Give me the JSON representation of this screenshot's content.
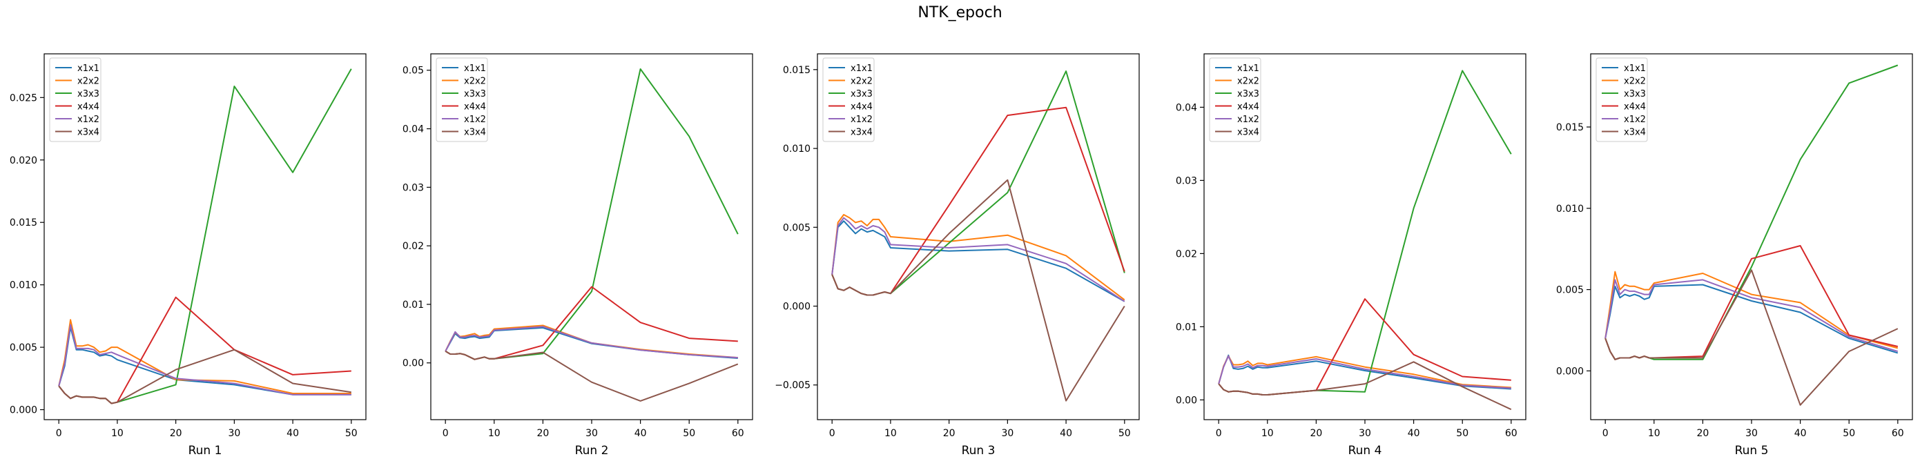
{
  "suptitle": "NTK_epoch",
  "series_names": [
    "x1x1",
    "x2x2",
    "x3x3",
    "x4x4",
    "x1x2",
    "x3x4"
  ],
  "colors": {
    "x1x1": "#1f77b4",
    "x2x2": "#ff7f0e",
    "x3x3": "#2ca02c",
    "x4x4": "#d62728",
    "x1x2": "#9467bd",
    "x3x4": "#8c564b"
  },
  "legend_placement": "upper-left",
  "grid": false,
  "chart_data": [
    {
      "type": "line",
      "xlabel": "Run 1",
      "ylabel": "",
      "xlim": [
        -2.5,
        52.5
      ],
      "ylim": [
        -0.0008,
        0.0285
      ],
      "xticks": [
        0,
        10,
        20,
        30,
        40,
        50
      ],
      "xtick_labels": [
        "0",
        "10",
        "20",
        "30",
        "40",
        "50"
      ],
      "yticks": [
        0,
        0.005,
        0.01,
        0.015,
        0.02,
        0.025
      ],
      "ytick_labels": [
        "0.000",
        "0.005",
        "0.010",
        "0.015",
        "0.020",
        "0.025"
      ],
      "x": [
        0,
        1,
        2,
        3,
        4,
        5,
        6,
        7,
        8,
        9,
        10,
        20,
        30,
        40,
        50
      ],
      "series": [
        {
          "name": "x1x1",
          "values": [
            0.0019,
            0.0035,
            0.0066,
            0.0048,
            0.0048,
            0.0047,
            0.0046,
            0.0043,
            0.0044,
            0.0043,
            0.004,
            0.0024,
            0.002,
            0.0012,
            0.0012
          ]
        },
        {
          "name": "x2x2",
          "values": [
            0.0019,
            0.004,
            0.0072,
            0.0051,
            0.0051,
            0.0052,
            0.005,
            0.0046,
            0.0047,
            0.005,
            0.005,
            0.0024,
            0.0023,
            0.0013,
            0.0013
          ]
        },
        {
          "name": "x3x3",
          "values": [
            0.0019,
            0.0013,
            0.0009,
            0.0011,
            0.001,
            0.001,
            0.001,
            0.0009,
            0.0009,
            0.0005,
            0.0006,
            0.002,
            0.0259,
            0.019,
            0.0273
          ]
        },
        {
          "name": "x4x4",
          "values": [
            0.0019,
            0.0013,
            0.0009,
            0.0011,
            0.001,
            0.001,
            0.001,
            0.0009,
            0.0009,
            0.0005,
            0.0006,
            0.009,
            0.0048,
            0.0028,
            0.0031
          ]
        },
        {
          "name": "x1x2",
          "values": [
            0.0019,
            0.0037,
            0.0068,
            0.0049,
            0.0049,
            0.0049,
            0.0048,
            0.0044,
            0.0045,
            0.0046,
            0.0044,
            0.0025,
            0.0021,
            0.0012,
            0.0012
          ]
        },
        {
          "name": "x3x4",
          "values": [
            0.0019,
            0.0013,
            0.0009,
            0.0011,
            0.001,
            0.001,
            0.001,
            0.0009,
            0.0009,
            0.0005,
            0.0006,
            0.0032,
            0.0048,
            0.0021,
            0.0014
          ]
        }
      ]
    },
    {
      "type": "line",
      "xlabel": "Run 2",
      "ylabel": "",
      "xlim": [
        -3,
        63
      ],
      "ylim": [
        -0.0097,
        0.0528
      ],
      "xticks": [
        0,
        10,
        20,
        30,
        40,
        50,
        60
      ],
      "xtick_labels": [
        "0",
        "10",
        "20",
        "30",
        "40",
        "50",
        "60"
      ],
      "yticks": [
        0,
        0.01,
        0.02,
        0.03,
        0.04,
        0.05
      ],
      "ytick_labels": [
        "0.00",
        "0.01",
        "0.02",
        "0.03",
        "0.04",
        "0.05"
      ],
      "x": [
        0,
        1,
        2,
        3,
        4,
        5,
        6,
        7,
        8,
        9,
        10,
        20,
        30,
        40,
        50,
        60
      ],
      "series": [
        {
          "name": "x1x1",
          "values": [
            0.002,
            0.0035,
            0.005,
            0.0043,
            0.0042,
            0.0044,
            0.0045,
            0.0042,
            0.0043,
            0.0044,
            0.0055,
            0.006,
            0.0033,
            0.0022,
            0.0014,
            0.0008
          ]
        },
        {
          "name": "x2x2",
          "values": [
            0.002,
            0.0037,
            0.0052,
            0.0045,
            0.0046,
            0.0048,
            0.005,
            0.0045,
            0.0047,
            0.0048,
            0.0058,
            0.0064,
            0.0034,
            0.0023,
            0.0015,
            0.0009
          ]
        },
        {
          "name": "x3x3",
          "values": [
            0.002,
            0.0015,
            0.0015,
            0.0016,
            0.0014,
            0.001,
            0.0006,
            0.0008,
            0.001,
            0.0007,
            0.0007,
            0.0016,
            0.0122,
            0.0502,
            0.0387,
            0.022
          ]
        },
        {
          "name": "x4x4",
          "values": [
            0.002,
            0.0015,
            0.0015,
            0.0016,
            0.0014,
            0.001,
            0.0006,
            0.0008,
            0.001,
            0.0007,
            0.0007,
            0.003,
            0.013,
            0.0069,
            0.0042,
            0.0037
          ]
        },
        {
          "name": "x1x2",
          "values": [
            0.002,
            0.0036,
            0.0053,
            0.0044,
            0.0044,
            0.0046,
            0.0047,
            0.0044,
            0.0045,
            0.0046,
            0.0056,
            0.0062,
            0.0034,
            0.0022,
            0.0014,
            0.0009
          ]
        },
        {
          "name": "x3x4",
          "values": [
            0.002,
            0.0015,
            0.0015,
            0.0016,
            0.0014,
            0.001,
            0.0006,
            0.0008,
            0.001,
            0.0007,
            0.0007,
            0.0018,
            -0.0033,
            -0.0065,
            -0.0035,
            -0.0002
          ]
        }
      ]
    },
    {
      "type": "line",
      "xlabel": "Run 3",
      "ylabel": "",
      "xlim": [
        -2.5,
        52.5
      ],
      "ylim": [
        -0.0072,
        0.016
      ],
      "xticks": [
        0,
        10,
        20,
        30,
        40,
        50
      ],
      "xtick_labels": [
        "0",
        "10",
        "20",
        "30",
        "40",
        "50"
      ],
      "yticks": [
        -0.005,
        0,
        0.005,
        0.01,
        0.015
      ],
      "ytick_labels": [
        "−0.005",
        "0.000",
        "0.005",
        "0.010",
        "0.015"
      ],
      "x": [
        0,
        1,
        2,
        3,
        4,
        5,
        6,
        7,
        8,
        9,
        10,
        20,
        30,
        40,
        50
      ],
      "series": [
        {
          "name": "x1x1",
          "values": [
            0.002,
            0.005,
            0.0054,
            0.005,
            0.0046,
            0.0049,
            0.0047,
            0.0048,
            0.0046,
            0.0044,
            0.0037,
            0.0035,
            0.0036,
            0.0024,
            0.0003
          ]
        },
        {
          "name": "x2x2",
          "values": [
            0.002,
            0.0053,
            0.0058,
            0.0056,
            0.0053,
            0.0054,
            0.0051,
            0.0055,
            0.0055,
            0.005,
            0.0044,
            0.0041,
            0.0045,
            0.0032,
            0.0004
          ]
        },
        {
          "name": "x3x3",
          "values": [
            0.002,
            0.0011,
            0.001,
            0.0012,
            0.001,
            0.0008,
            0.0007,
            0.0007,
            0.0008,
            0.0009,
            0.0008,
            0.004,
            0.0072,
            0.0149,
            0.0021
          ]
        },
        {
          "name": "x4x4",
          "values": [
            0.002,
            0.0011,
            0.001,
            0.0012,
            0.001,
            0.0008,
            0.0007,
            0.0007,
            0.0008,
            0.0009,
            0.0008,
            0.0064,
            0.0121,
            0.0126,
            0.0022
          ]
        },
        {
          "name": "x1x2",
          "values": [
            0.002,
            0.0051,
            0.0056,
            0.0053,
            0.0049,
            0.0051,
            0.0049,
            0.0051,
            0.005,
            0.0047,
            0.0039,
            0.0037,
            0.0039,
            0.0027,
            0.0003
          ]
        },
        {
          "name": "x3x4",
          "values": [
            0.002,
            0.0011,
            0.001,
            0.0012,
            0.001,
            0.0008,
            0.0007,
            0.0007,
            0.0008,
            0.0009,
            0.0008,
            0.0046,
            0.008,
            -0.006,
            0.0
          ]
        }
      ]
    },
    {
      "type": "line",
      "xlabel": "Run 4",
      "ylabel": "",
      "xlim": [
        -3,
        63
      ],
      "ylim": [
        -0.0027,
        0.0473
      ],
      "xticks": [
        0,
        10,
        20,
        30,
        40,
        50,
        60
      ],
      "xtick_labels": [
        "0",
        "10",
        "20",
        "30",
        "40",
        "50",
        "60"
      ],
      "yticks": [
        0,
        0.01,
        0.02,
        0.03,
        0.04
      ],
      "ytick_labels": [
        "0.00",
        "0.01",
        "0.02",
        "0.03",
        "0.04"
      ],
      "x": [
        0,
        1,
        2,
        3,
        4,
        5,
        6,
        7,
        8,
        9,
        10,
        20,
        30,
        40,
        50,
        60
      ],
      "series": [
        {
          "name": "x1x1",
          "values": [
            0.0022,
            0.0045,
            0.0061,
            0.0043,
            0.0042,
            0.0043,
            0.0046,
            0.0042,
            0.0045,
            0.0044,
            0.0044,
            0.0053,
            0.004,
            0.003,
            0.0019,
            0.0015
          ]
        },
        {
          "name": "x2x2",
          "values": [
            0.0022,
            0.0046,
            0.006,
            0.0048,
            0.0048,
            0.0049,
            0.0053,
            0.0047,
            0.005,
            0.005,
            0.0048,
            0.0059,
            0.0045,
            0.0035,
            0.0021,
            0.0017
          ]
        },
        {
          "name": "x3x3",
          "values": [
            0.0022,
            0.0014,
            0.0011,
            0.0012,
            0.0012,
            0.0011,
            0.001,
            0.0008,
            0.0008,
            0.0007,
            0.0007,
            0.0013,
            0.0011,
            0.0262,
            0.045,
            0.0336
          ]
        },
        {
          "name": "x4x4",
          "values": [
            0.0022,
            0.0014,
            0.0011,
            0.0012,
            0.0012,
            0.0011,
            0.001,
            0.0008,
            0.0008,
            0.0007,
            0.0007,
            0.0013,
            0.0138,
            0.0062,
            0.0032,
            0.0027
          ]
        },
        {
          "name": "x1x2",
          "values": [
            0.0022,
            0.0045,
            0.006,
            0.0045,
            0.0045,
            0.0046,
            0.0049,
            0.0044,
            0.0047,
            0.0047,
            0.0046,
            0.0056,
            0.0042,
            0.0032,
            0.002,
            0.0016
          ]
        },
        {
          "name": "x3x4",
          "values": [
            0.0022,
            0.0014,
            0.0011,
            0.0012,
            0.0012,
            0.0011,
            0.001,
            0.0008,
            0.0008,
            0.0007,
            0.0007,
            0.0013,
            0.0022,
            0.0052,
            0.0018,
            -0.0013
          ]
        }
      ]
    },
    {
      "type": "line",
      "xlabel": "Run 5",
      "ylabel": "",
      "xlim": [
        -3,
        63
      ],
      "ylim": [
        -0.003,
        0.0195
      ],
      "xticks": [
        0,
        10,
        20,
        30,
        40,
        50,
        60
      ],
      "xtick_labels": [
        "0",
        "10",
        "20",
        "30",
        "40",
        "50",
        "60"
      ],
      "yticks": [
        0,
        0.005,
        0.01,
        0.015
      ],
      "ytick_labels": [
        "0.000",
        "0.005",
        "0.010",
        "0.015"
      ],
      "x": [
        0,
        1,
        2,
        3,
        4,
        5,
        6,
        7,
        8,
        9,
        10,
        20,
        30,
        40,
        50,
        60
      ],
      "series": [
        {
          "name": "x1x1",
          "values": [
            0.002,
            0.0035,
            0.0052,
            0.0045,
            0.0047,
            0.0046,
            0.0047,
            0.0046,
            0.0044,
            0.0045,
            0.0052,
            0.0053,
            0.0043,
            0.0036,
            0.002,
            0.0011
          ]
        },
        {
          "name": "x2x2",
          "values": [
            0.002,
            0.004,
            0.0061,
            0.005,
            0.0053,
            0.0052,
            0.0052,
            0.0051,
            0.005,
            0.005,
            0.0054,
            0.006,
            0.0047,
            0.0042,
            0.0022,
            0.0014
          ]
        },
        {
          "name": "x3x3",
          "values": [
            0.002,
            0.0012,
            0.0007,
            0.0008,
            0.0008,
            0.0008,
            0.0009,
            0.0008,
            0.0009,
            0.0008,
            0.0007,
            0.0007,
            0.0064,
            0.013,
            0.0177,
            0.0188
          ]
        },
        {
          "name": "x4x4",
          "values": [
            0.002,
            0.0012,
            0.0007,
            0.0008,
            0.0008,
            0.0008,
            0.0009,
            0.0008,
            0.0009,
            0.0008,
            0.0008,
            0.0009,
            0.0069,
            0.0077,
            0.0022,
            0.0015
          ]
        },
        {
          "name": "x1x2",
          "values": [
            0.002,
            0.0037,
            0.0056,
            0.0047,
            0.005,
            0.0049,
            0.0049,
            0.0048,
            0.0047,
            0.0047,
            0.0053,
            0.0056,
            0.0045,
            0.0039,
            0.0021,
            0.0012
          ]
        },
        {
          "name": "x3x4",
          "values": [
            0.002,
            0.0012,
            0.0007,
            0.0008,
            0.0008,
            0.0008,
            0.0009,
            0.0008,
            0.0009,
            0.0008,
            0.0008,
            0.0008,
            0.0062,
            -0.0021,
            0.0012,
            0.0026
          ]
        }
      ]
    }
  ]
}
